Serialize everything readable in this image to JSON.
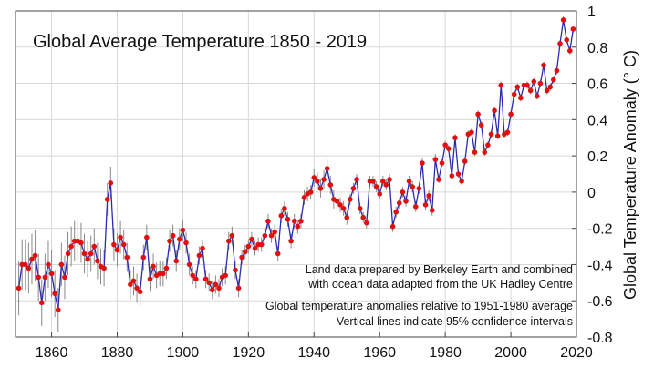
{
  "chart_data": {
    "type": "line",
    "title": "Global Average Temperature 1850 - 2019",
    "xlabel": "",
    "ylabel": "Global Temperature Anomaly (° C)",
    "xlim": [
      1849,
      2020
    ],
    "ylim": [
      -0.8,
      1.0
    ],
    "xticks": [
      1860,
      1880,
      1900,
      1920,
      1940,
      1960,
      1980,
      2000,
      2020
    ],
    "yticks": [
      -0.8,
      -0.6,
      -0.4,
      -0.2,
      0,
      0.2,
      0.4,
      0.6,
      0.8,
      1
    ],
    "ytick_labels": [
      "-0.8",
      "-0.6",
      "-0.4",
      "-0.2",
      "0",
      "0.2",
      "0.4",
      "0.6",
      "0.8",
      "1"
    ],
    "xtick_labels": [
      "1860",
      "1880",
      "1900",
      "1920",
      "1940",
      "1960",
      "1980",
      "2000",
      "2020"
    ],
    "grid": true,
    "y_axis_side": "right",
    "annotations": [
      "Land data prepared by Berkeley Earth and combined",
      "with ocean data adapted from the UK Hadley Centre",
      "Global temperature anomalies relative to 1951-1980 average",
      "Vertical lines indicate 95% confidence intervals"
    ],
    "series_color": "#2b2bb0",
    "marker_color": "#e01010",
    "errorbar_color": "#888888",
    "x": [
      1850,
      1851,
      1852,
      1853,
      1854,
      1855,
      1856,
      1857,
      1858,
      1859,
      1860,
      1861,
      1862,
      1863,
      1864,
      1865,
      1866,
      1867,
      1868,
      1869,
      1870,
      1871,
      1872,
      1873,
      1874,
      1875,
      1876,
      1877,
      1878,
      1879,
      1880,
      1881,
      1882,
      1883,
      1884,
      1885,
      1886,
      1887,
      1888,
      1889,
      1890,
      1891,
      1892,
      1893,
      1894,
      1895,
      1896,
      1897,
      1898,
      1899,
      1900,
      1901,
      1902,
      1903,
      1904,
      1905,
      1906,
      1907,
      1908,
      1909,
      1910,
      1911,
      1912,
      1913,
      1914,
      1915,
      1916,
      1917,
      1918,
      1919,
      1920,
      1921,
      1922,
      1923,
      1924,
      1925,
      1926,
      1927,
      1928,
      1929,
      1930,
      1931,
      1932,
      1933,
      1934,
      1935,
      1936,
      1937,
      1938,
      1939,
      1940,
      1941,
      1942,
      1943,
      1944,
      1945,
      1946,
      1947,
      1948,
      1949,
      1950,
      1951,
      1952,
      1953,
      1954,
      1955,
      1956,
      1957,
      1958,
      1959,
      1960,
      1961,
      1962,
      1963,
      1964,
      1965,
      1966,
      1967,
      1968,
      1969,
      1970,
      1971,
      1972,
      1973,
      1974,
      1975,
      1976,
      1977,
      1978,
      1979,
      1980,
      1981,
      1982,
      1983,
      1984,
      1985,
      1986,
      1987,
      1988,
      1989,
      1990,
      1991,
      1992,
      1993,
      1994,
      1995,
      1996,
      1997,
      1998,
      1999,
      2000,
      2001,
      2002,
      2003,
      2004,
      2005,
      2006,
      2007,
      2008,
      2009,
      2010,
      2011,
      2012,
      2013,
      2014,
      2015,
      2016,
      2017,
      2018,
      2019
    ],
    "values": [
      -0.53,
      -0.4,
      -0.4,
      -0.42,
      -0.37,
      -0.35,
      -0.47,
      -0.61,
      -0.47,
      -0.4,
      -0.45,
      -0.56,
      -0.65,
      -0.4,
      -0.47,
      -0.34,
      -0.3,
      -0.27,
      -0.27,
      -0.28,
      -0.34,
      -0.37,
      -0.34,
      -0.3,
      -0.38,
      -0.41,
      -0.42,
      -0.04,
      0.05,
      -0.29,
      -0.32,
      -0.25,
      -0.29,
      -0.36,
      -0.51,
      -0.49,
      -0.53,
      -0.55,
      -0.36,
      -0.25,
      -0.48,
      -0.41,
      -0.46,
      -0.45,
      -0.45,
      -0.42,
      -0.27,
      -0.24,
      -0.38,
      -0.26,
      -0.21,
      -0.28,
      -0.4,
      -0.46,
      -0.48,
      -0.35,
      -0.31,
      -0.48,
      -0.5,
      -0.54,
      -0.51,
      -0.53,
      -0.47,
      -0.46,
      -0.27,
      -0.24,
      -0.43,
      -0.53,
      -0.36,
      -0.33,
      -0.3,
      -0.26,
      -0.31,
      -0.29,
      -0.29,
      -0.24,
      -0.16,
      -0.24,
      -0.22,
      -0.34,
      -0.13,
      -0.09,
      -0.15,
      -0.27,
      -0.16,
      -0.19,
      -0.16,
      -0.03,
      -0.01,
      0.0,
      0.08,
      0.06,
      0.02,
      0.07,
      0.13,
      0.04,
      -0.04,
      -0.05,
      -0.07,
      -0.09,
      -0.14,
      -0.04,
      0.02,
      0.07,
      -0.09,
      -0.14,
      -0.17,
      0.06,
      0.06,
      0.03,
      -0.01,
      0.06,
      0.04,
      0.07,
      -0.19,
      -0.11,
      -0.06,
      0.0,
      -0.05,
      0.06,
      0.03,
      -0.08,
      0.02,
      0.16,
      -0.07,
      -0.02,
      -0.1,
      0.18,
      0.07,
      0.16,
      0.26,
      0.24,
      0.09,
      0.3,
      0.1,
      0.06,
      0.17,
      0.32,
      0.33,
      0.22,
      0.43,
      0.37,
      0.22,
      0.26,
      0.32,
      0.45,
      0.31,
      0.59,
      0.32,
      0.33,
      0.43,
      0.54,
      0.58,
      0.52,
      0.59,
      0.59,
      0.56,
      0.61,
      0.53,
      0.6,
      0.7,
      0.56,
      0.58,
      0.62,
      0.67,
      0.82,
      0.95,
      0.84,
      0.78,
      0.9
    ],
    "ci": [
      0.15,
      0.14,
      0.14,
      0.14,
      0.14,
      0.14,
      0.13,
      0.13,
      0.13,
      0.13,
      0.13,
      0.13,
      0.12,
      0.12,
      0.12,
      0.12,
      0.11,
      0.11,
      0.11,
      0.11,
      0.11,
      0.1,
      0.1,
      0.1,
      0.1,
      0.1,
      0.1,
      0.09,
      0.09,
      0.09,
      0.09,
      0.09,
      0.08,
      0.08,
      0.08,
      0.08,
      0.08,
      0.08,
      0.07,
      0.07,
      0.07,
      0.07,
      0.07,
      0.07,
      0.07,
      0.06,
      0.06,
      0.06,
      0.06,
      0.06,
      0.06,
      0.06,
      0.06,
      0.05,
      0.05,
      0.05,
      0.05,
      0.05,
      0.05,
      0.05,
      0.05,
      0.05,
      0.05,
      0.05,
      0.05,
      0.05,
      0.05,
      0.05,
      0.04,
      0.04,
      0.04,
      0.04,
      0.04,
      0.04,
      0.04,
      0.04,
      0.04,
      0.04,
      0.04,
      0.04,
      0.04,
      0.04,
      0.04,
      0.04,
      0.04,
      0.04,
      0.04,
      0.04,
      0.04,
      0.04,
      0.05,
      0.05,
      0.05,
      0.05,
      0.05,
      0.05,
      0.05,
      0.04,
      0.04,
      0.04,
      0.04,
      0.03,
      0.03,
      0.03,
      0.03,
      0.03,
      0.03,
      0.03,
      0.03,
      0.03,
      0.03,
      0.03,
      0.03,
      0.03,
      0.03,
      0.03,
      0.03,
      0.03,
      0.03,
      0.03,
      0.03,
      0.03,
      0.03,
      0.03,
      0.03,
      0.03,
      0.03,
      0.03,
      0.02,
      0.02,
      0.02,
      0.02,
      0.02,
      0.02,
      0.02,
      0.02,
      0.02,
      0.02,
      0.02,
      0.02,
      0.02,
      0.02,
      0.02,
      0.02,
      0.02,
      0.02,
      0.02,
      0.02,
      0.02,
      0.02,
      0.02,
      0.02,
      0.02,
      0.02,
      0.02,
      0.02,
      0.02,
      0.02,
      0.02,
      0.02,
      0.02,
      0.02,
      0.02,
      0.02,
      0.02,
      0.02,
      0.02,
      0.02,
      0.02,
      0.02
    ]
  }
}
